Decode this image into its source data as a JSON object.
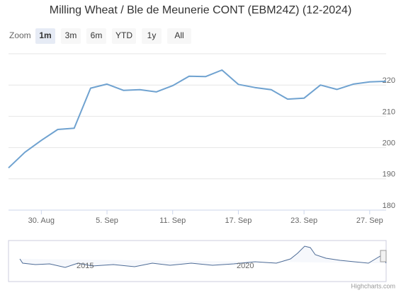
{
  "chart_data": {
    "type": "line",
    "title": "Milling Wheat / Ble de Meunerie CONT (EBM24Z) (12-2024)",
    "range_selector": {
      "label": "Zoom",
      "buttons": [
        "1m",
        "3m",
        "6m",
        "YTD",
        "1y",
        "All"
      ],
      "selected": 0
    },
    "categories": [
      null,
      null,
      "30. Aug",
      null,
      null,
      null,
      "5. Sep",
      null,
      null,
      null,
      "11. Sep",
      null,
      null,
      null,
      "17. Sep",
      null,
      null,
      null,
      "23. Sep",
      null,
      null,
      null,
      "27. Sep",
      null
    ],
    "series": [
      {
        "name": "EBM24Z",
        "color": "#6fa2d0",
        "values": [
          193.5,
          198.5,
          202.3,
          205.8,
          206.2,
          219.0,
          220.3,
          218.3,
          218.5,
          217.8,
          219.8,
          222.8,
          222.7,
          224.8,
          220.2,
          219.2,
          218.5,
          215.5,
          215.8,
          220.0,
          218.6,
          220.3,
          221.0,
          221.2
        ]
      }
    ],
    "ylim": [
      180,
      230
    ],
    "yticks": [
      180,
      190,
      200,
      210,
      220
    ],
    "grid": true,
    "navigator": {
      "labels": [
        "2015",
        "2020"
      ]
    },
    "credits": "Highcharts.com"
  }
}
